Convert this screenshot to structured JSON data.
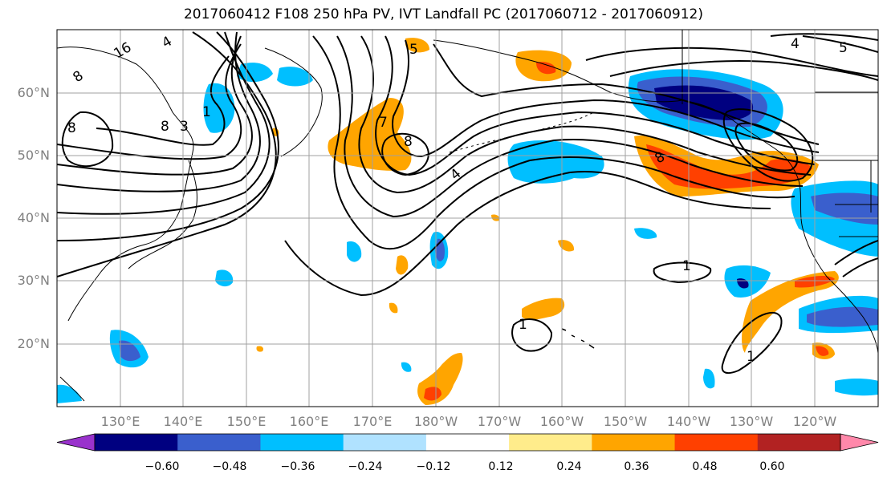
{
  "title": "2017060412 F108 250 hPa PV, IVT Landfall PC (2017060712 - 2017060912)",
  "lat_labels": [
    "60°N",
    "50°N",
    "40°N",
    "30°N",
    "20°N"
  ],
  "lon_labels": [
    "130°E",
    "140°E",
    "150°E",
    "160°E",
    "170°E",
    "180°W",
    "170°W",
    "160°W",
    "150°W",
    "140°W",
    "130°W",
    "120°W"
  ],
  "contour_labels": [
    "8",
    "16",
    "4",
    "8",
    "8",
    "3",
    "1",
    "7",
    "8",
    "4",
    "8",
    "1",
    "1",
    "1",
    "5",
    "4",
    "5"
  ],
  "colorbar": {
    "ticks": [
      "−0.60",
      "−0.48",
      "−0.36",
      "−0.24",
      "−0.12",
      "0.12",
      "0.24",
      "0.36",
      "0.48",
      "0.60"
    ],
    "colors": [
      "#9932cc",
      "#000080",
      "#3a5fcd",
      "#00bfff",
      "#b0e2ff",
      "#ffffff",
      "#ffec8b",
      "#ffa500",
      "#ff4000",
      "#b22222",
      "#ff88aa"
    ]
  },
  "fill_colors": {
    "strong_neg": "#000080",
    "mid_neg": "#3a5fcd",
    "neg": "#00bfff",
    "weak_neg": "#b0e2ff",
    "weak_pos": "#ffec8b",
    "pos": "#ffa500",
    "mid_pos": "#ff4000",
    "strong_pos": "#b22222"
  }
}
